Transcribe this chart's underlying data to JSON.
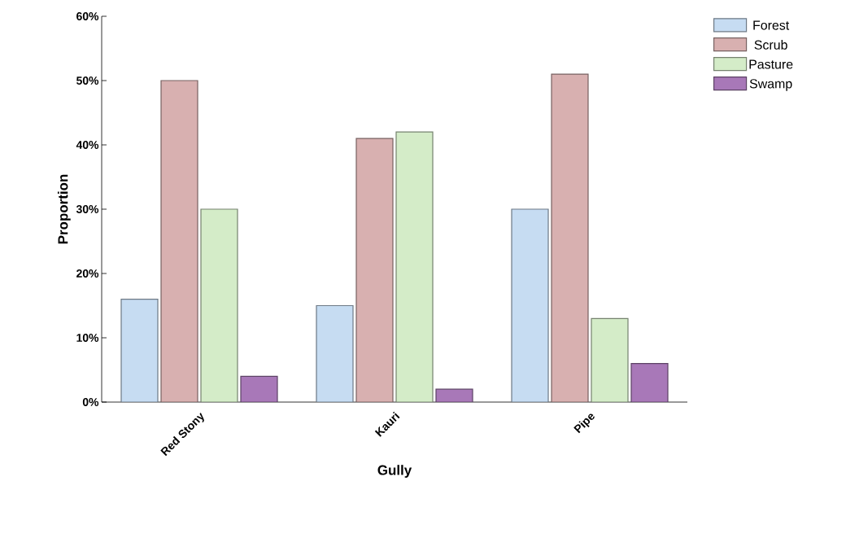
{
  "chart_data": {
    "type": "bar",
    "xlabel": "Gully",
    "ylabel": "Proportion",
    "categories": [
      "Red Stony",
      "Kauri",
      "Pipe"
    ],
    "series": [
      {
        "name": "Forest",
        "color": "#c6dcf2",
        "values": [
          16,
          15,
          30
        ]
      },
      {
        "name": "Scrub",
        "color": "#d8b0b0",
        "values": [
          50,
          41,
          51
        ]
      },
      {
        "name": "Pasture",
        "color": "#d4ecc8",
        "values": [
          30,
          42,
          13
        ]
      },
      {
        "name": "Swamp",
        "color": "#a878b8",
        "values": [
          4,
          2,
          6
        ]
      }
    ],
    "ylim": [
      0,
      60
    ],
    "yticks": [
      {
        "value": 0,
        "label": "0%"
      },
      {
        "value": 10,
        "label": "10%"
      },
      {
        "value": 20,
        "label": "20%"
      },
      {
        "value": 30,
        "label": "30%"
      },
      {
        "value": 40,
        "label": "40%"
      },
      {
        "value": 50,
        "label": "50%"
      },
      {
        "value": 60,
        "label": "60%"
      }
    ],
    "grid": false,
    "legend": "top right"
  }
}
